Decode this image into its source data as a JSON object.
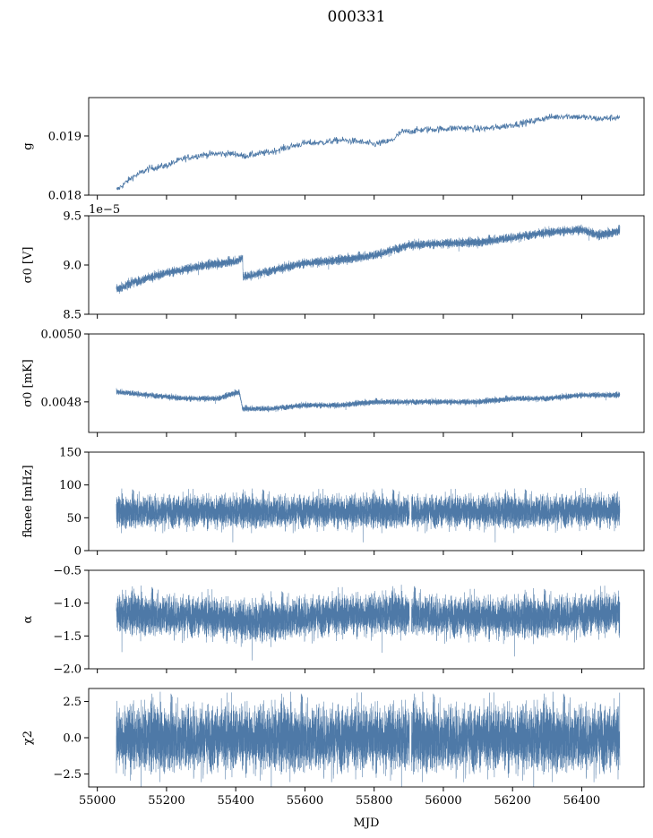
{
  "figure_title": "000331",
  "line_color": "#4e79a7",
  "chart_data": [
    {
      "id": "g",
      "type": "line",
      "ylabel": "g",
      "ylim": [
        0.018,
        0.01965
      ],
      "yticks": [
        0.018,
        0.019
      ],
      "ytick_labels": [
        "0.018",
        "0.019"
      ],
      "offset_text": "",
      "style": "thin",
      "x": [
        55055,
        55100,
        55150,
        55200,
        55250,
        55300,
        55350,
        55400,
        55420,
        55500,
        55550,
        55600,
        55650,
        55700,
        55750,
        55800,
        55850,
        55880,
        55900,
        55950,
        56000,
        56050,
        56100,
        56150,
        56200,
        56250,
        56300,
        56350,
        56400,
        56450,
        56510
      ],
      "values": [
        0.01808,
        0.0183,
        0.01845,
        0.0185,
        0.01862,
        0.01868,
        0.0187,
        0.0187,
        0.01866,
        0.01873,
        0.01881,
        0.01888,
        0.01889,
        0.01893,
        0.01891,
        0.01886,
        0.01892,
        0.01907,
        0.01908,
        0.01911,
        0.01912,
        0.01914,
        0.01912,
        0.01914,
        0.01919,
        0.01924,
        0.01931,
        0.01934,
        0.01932,
        0.01929,
        0.01932
      ],
      "noise": 2.8e-05
    },
    {
      "id": "sigma0_v",
      "type": "line",
      "ylabel": "σ0 [V]",
      "ylim": [
        8.5e-05,
        9.5e-05
      ],
      "yticks": [
        8.5e-05,
        9e-05,
        9.5e-05
      ],
      "ytick_labels": [
        "8.5",
        "9.0",
        "9.5"
      ],
      "offset_text": "1e−5",
      "style": "dense",
      "x": [
        55055,
        55100,
        55200,
        55300,
        55400,
        55420,
        55421,
        55500,
        55600,
        55700,
        55800,
        55850,
        55900,
        56000,
        56100,
        56200,
        56300,
        56400,
        56450,
        56510
      ],
      "values": [
        8.75e-05,
        8.82e-05,
        8.92e-05,
        8.99e-05,
        9.04e-05,
        9.07e-05,
        8.88e-05,
        8.94e-05,
        9.02e-05,
        9.05e-05,
        9.1e-05,
        9.15e-05,
        9.2e-05,
        9.22e-05,
        9.23e-05,
        9.28e-05,
        9.33e-05,
        9.36e-05,
        9.3e-05,
        9.35e-05
      ],
      "noise": 2.2e-07
    },
    {
      "id": "sigma0_mk",
      "type": "line",
      "ylabel": "σ0 [mK]",
      "ylim": [
        0.00471,
        0.005
      ],
      "yticks": [
        0.0048,
        0.005
      ],
      "ytick_labels": [
        "0.0048",
        "0.0050"
      ],
      "offset_text": "",
      "style": "dense",
      "x": [
        55055,
        55150,
        55250,
        55350,
        55410,
        55420,
        55500,
        55600,
        55700,
        55800,
        55900,
        56000,
        56100,
        56200,
        56300,
        56400,
        56510
      ],
      "values": [
        0.00483,
        0.00482,
        0.00481,
        0.00481,
        0.00483,
        0.00478,
        0.00478,
        0.00479,
        0.00479,
        0.0048,
        0.0048,
        0.0048,
        0.0048,
        0.00481,
        0.00481,
        0.00482,
        0.00482
      ],
      "noise": 4e-06
    },
    {
      "id": "fknee",
      "type": "line",
      "ylabel": "fknee [mHz]",
      "ylim": [
        0,
        150
      ],
      "yticks": [
        0,
        50,
        100,
        150
      ],
      "ytick_labels": [
        "0",
        "50",
        "100",
        "150"
      ],
      "offset_text": "",
      "style": "dense",
      "x": [
        55055,
        55300,
        55600,
        55900,
        56200,
        56510
      ],
      "values": [
        60,
        60,
        60,
        60,
        60,
        62
      ],
      "noise": 12
    },
    {
      "id": "alpha",
      "type": "line",
      "ylabel": "α",
      "ylim": [
        -2.0,
        -0.5
      ],
      "yticks": [
        -2.0,
        -1.5,
        -1.0,
        -0.5
      ],
      "ytick_labels": [
        "−2.0",
        "−1.5",
        "−1.0",
        "−0.5"
      ],
      "offset_text": "",
      "style": "dense",
      "x": [
        55055,
        55300,
        55450,
        55600,
        55900,
        56000,
        56200,
        56510
      ],
      "values": [
        -1.15,
        -1.2,
        -1.28,
        -1.2,
        -1.15,
        -1.2,
        -1.22,
        -1.15
      ],
      "noise": 0.15
    },
    {
      "id": "chi2",
      "type": "line",
      "ylabel": "χ2",
      "ylim": [
        -3.4,
        3.4
      ],
      "yticks": [
        -2.5,
        0.0,
        2.5
      ],
      "ytick_labels": [
        "−2.5",
        "0.0",
        "2.5"
      ],
      "offset_text": "",
      "style": "dense",
      "x": [
        55055,
        56510
      ],
      "values": [
        0,
        0
      ],
      "noise": 1.1
    }
  ],
  "x_axis": {
    "label": "MJD",
    "xlim": [
      54975,
      56580
    ],
    "ticks": [
      55000,
      55200,
      55400,
      55600,
      55800,
      56000,
      56200,
      56400
    ],
    "tick_labels": [
      "55000",
      "55200",
      "55400",
      "55600",
      "55800",
      "56000",
      "56200",
      "56400"
    ]
  }
}
